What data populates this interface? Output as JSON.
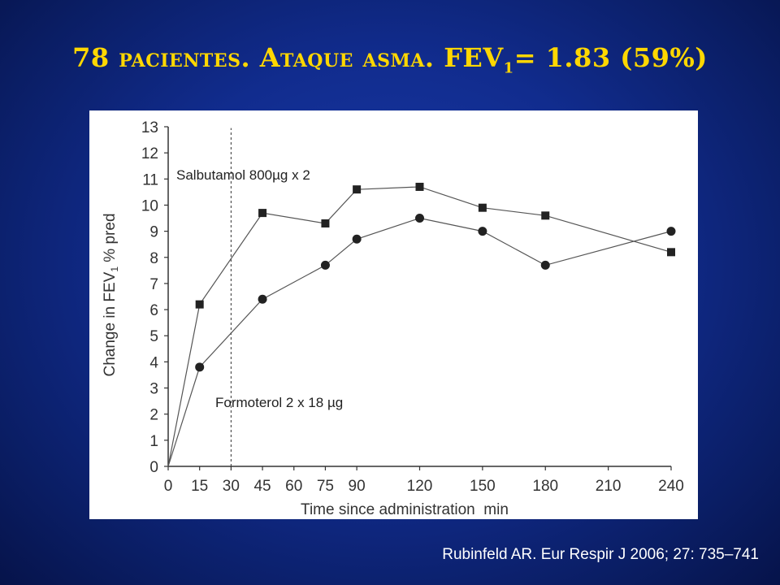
{
  "slide": {
    "title_main": "78 pacientes. Ataque asma. FEV",
    "title_sub": "1",
    "title_tail": "= 1.83 (59%)",
    "citation": "Rubinfeld AR. Eur Respir J 2006; 27: 735–741"
  },
  "chart_data": {
    "type": "line",
    "xlabel": "Time since administration  min",
    "ylabel_prefix": "Change in FEV",
    "ylabel_sub": "1",
    "ylabel_suffix": " % pred",
    "xlim": [
      0,
      240
    ],
    "ylim": [
      0,
      13
    ],
    "x_ticks": [
      0,
      15,
      30,
      45,
      60,
      75,
      90,
      120,
      150,
      180,
      210,
      240
    ],
    "y_ticks": [
      0,
      1,
      2,
      3,
      4,
      5,
      6,
      7,
      8,
      9,
      10,
      11,
      12,
      13
    ],
    "reference_line_x": 30,
    "grid": false,
    "series": [
      {
        "name": "Salbutamol 800µg x 2",
        "marker": "square",
        "x": [
          0,
          15,
          45,
          75,
          90,
          120,
          150,
          180,
          240
        ],
        "y": [
          0,
          6.2,
          9.7,
          9.3,
          10.6,
          10.7,
          9.9,
          9.6,
          8.2
        ]
      },
      {
        "name": "Formoterol 2 x 18 µg",
        "marker": "circle",
        "x": [
          0,
          15,
          45,
          75,
          90,
          120,
          150,
          180,
          240
        ],
        "y": [
          0,
          3.8,
          6.4,
          7.7,
          8.7,
          9.5,
          9.0,
          7.7,
          9.0
        ]
      }
    ],
    "colors": {
      "line": "#555555",
      "marker": "#222222",
      "axis": "#333333"
    }
  }
}
